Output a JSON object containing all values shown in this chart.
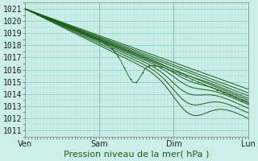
{
  "title": "Pression niveau de la mer( hPa )",
  "bg_color": "#cceee8",
  "grid_minor_color": "#aaddd6",
  "grid_major_color": "#88ccC4",
  "line_color": "#1a5c1a",
  "ylim": [
    1010.5,
    1021.5
  ],
  "yticks": [
    1011,
    1012,
    1013,
    1014,
    1015,
    1016,
    1017,
    1018,
    1019,
    1020,
    1021
  ],
  "xtick_labels": [
    "Ven",
    "Sam",
    "Dim",
    "Lun"
  ],
  "xtick_positions": [
    0,
    1,
    2,
    3
  ],
  "line_lw": 0.7,
  "marker_size": 2.2,
  "font_size": 7
}
